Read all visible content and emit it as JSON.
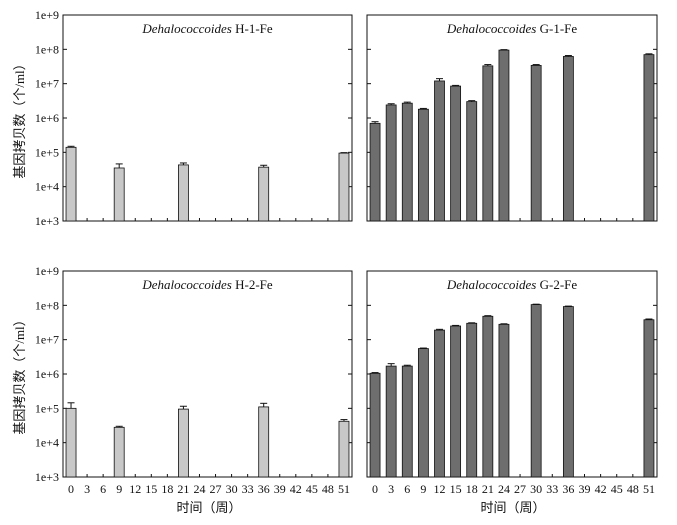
{
  "shared": {
    "ylabel": "基因拷贝数（个/ml）",
    "xlabel": "时间（周）",
    "x_ticks": [
      "0",
      "3",
      "6",
      "9",
      "12",
      "15",
      "18",
      "21",
      "24",
      "27",
      "30",
      "33",
      "36",
      "39",
      "42",
      "45",
      "48",
      "51"
    ],
    "y_ticks": [
      "1e+3",
      "1e+4",
      "1e+5",
      "1e+6",
      "1e+7",
      "1e+8",
      "1e+9"
    ],
    "y_tick_values": [
      3,
      4,
      5,
      6,
      7,
      8,
      9
    ],
    "ylim_log10": [
      3,
      9
    ],
    "xlim_weeks": [
      -1.5,
      52.5
    ]
  },
  "colors": {
    "light_bar": "#c8c8c8",
    "dark_bar": "#6e6e6e",
    "axis": "#111111"
  },
  "chart_data": [
    {
      "type": "bar",
      "title_italic": "Dehalococcoides",
      "title_rest": " H-1-Fe",
      "scale": "log10",
      "color_key": "light_bar",
      "x": [
        0,
        9,
        21,
        36,
        51
      ],
      "values": [
        140000,
        35000,
        43000,
        37000,
        95000
      ],
      "error_upper": [
        150000,
        46000,
        49000,
        42000,
        98000
      ]
    },
    {
      "type": "bar",
      "title_italic": "Dehalococcoides",
      "title_rest": " G-1-Fe",
      "scale": "log10",
      "color_key": "dark_bar",
      "x": [
        0,
        3,
        6,
        9,
        12,
        15,
        18,
        21,
        24,
        30,
        36,
        51
      ],
      "values": [
        700000,
        2400000,
        2700000,
        1800000,
        12000000,
        8500000,
        3000000,
        33000000,
        95000000,
        34000000,
        62000000,
        70000000
      ],
      "error_upper": [
        780000,
        2600000,
        2900000,
        1900000,
        14000000,
        8900000,
        3200000,
        36000000,
        98000000,
        36000000,
        66000000,
        74000000
      ]
    },
    {
      "type": "bar",
      "title_italic": "Dehalococcoides",
      "title_rest": " H-2-Fe",
      "scale": "log10",
      "color_key": "light_bar",
      "x": [
        0,
        9,
        21,
        36,
        51
      ],
      "values": [
        100000,
        28000,
        95000,
        110000,
        42000
      ],
      "error_upper": [
        145000,
        30000,
        115000,
        140000,
        47000
      ]
    },
    {
      "type": "bar",
      "title_italic": "Dehalococcoides",
      "title_rest": " G-2-Fe",
      "scale": "log10",
      "color_key": "dark_bar",
      "x": [
        0,
        3,
        6,
        9,
        12,
        15,
        18,
        21,
        24,
        30,
        36,
        51
      ],
      "values": [
        1050000,
        1700000,
        1700000,
        5500000,
        19000000,
        25000000,
        30000000,
        48000000,
        28000000,
        105000000,
        92000000,
        38000000
      ],
      "error_upper": [
        1100000,
        2000000,
        1800000,
        5700000,
        20000000,
        26000000,
        31000000,
        50000000,
        29000000,
        108000000,
        95000000,
        40000000
      ]
    }
  ]
}
